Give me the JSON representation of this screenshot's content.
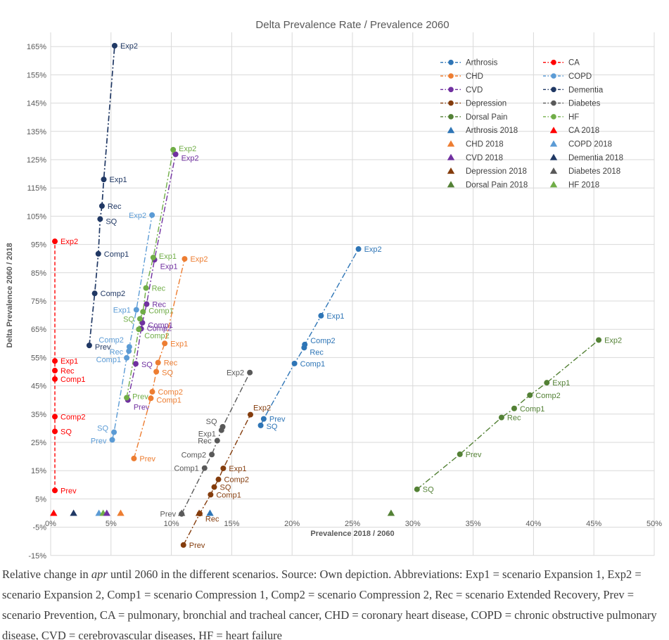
{
  "caption": {
    "before_italic": "Relative change in ",
    "italic": "apr",
    "after_italic": " until 2060 in the different scenarios. Source: Own depiction. Abbreviations: Exp1 = scenario Expansion 1, Exp2 = scenario Expansion 2, Comp1 = scenario Compression 1, Comp2 = scenario Compression 2, Rec = scenario Extended Recovery, Prev = scenario Prevention, CA = pulmonary, bronchial and tracheal cancer, CHD = coronary heart disease, COPD = chronic obstructive pulmonary disease, CVD = cerebrovascular diseases, HF = heart failure"
  },
  "legend": {
    "columns": [
      [
        "Arthrosis",
        "CHD",
        "CVD",
        "Depression",
        "Dorsal Pain",
        "Arthrosis 2018",
        "CHD 2018",
        "CVD 2018",
        "Depression 2018",
        "Dorsal Pain 2018"
      ],
      [
        "CA",
        "COPD",
        "Dementia",
        "Diabetes",
        "HF",
        "CA 2018",
        "COPD 2018",
        "Dementia 2018",
        "Diabetes 2018",
        "HF 2018"
      ]
    ]
  },
  "chart_data": {
    "type": "scatter",
    "title": "Delta Prevalence Rate / Prevalence 2060",
    "xlabel": "Prevalence 2018 / 2060",
    "ylabel": "Delta Prevalence 2060 / 2018",
    "xlim": [
      0,
      50
    ],
    "ylim": [
      -15,
      165
    ],
    "x_tick_step": 5,
    "y_tick_step": 10,
    "tick_format": "percent",
    "grid": true,
    "legend_position": "top-right-inside",
    "colors": {
      "grid": "#d9d9d9",
      "axis_text": "#595959",
      "legend_text": "#404040",
      "title_text": "#595959"
    },
    "series": [
      {
        "name": "Dementia",
        "color": "#203864",
        "style": "dashdot",
        "width": 1.7,
        "points": [
          {
            "s": "Prev",
            "x": 3.2,
            "y": 59.3,
            "side": "r",
            "dy": 6
          },
          {
            "s": "Comp2",
            "x": 3.65,
            "y": 77.7,
            "side": "r"
          },
          {
            "s": "Comp1",
            "x": 3.95,
            "y": 91.7,
            "side": "r"
          },
          {
            "s": "SQ",
            "x": 4.1,
            "y": 104.0,
            "side": "r",
            "dy": 7
          },
          {
            "s": "Rec",
            "x": 4.25,
            "y": 108.6,
            "side": "r"
          },
          {
            "s": "Exp1",
            "x": 4.4,
            "y": 118.0,
            "side": "r"
          },
          {
            "s": "Exp2",
            "x": 5.3,
            "y": 165.3,
            "side": "r"
          }
        ]
      },
      {
        "name": "CA",
        "color": "#ff0000",
        "style": "dash",
        "width": 1.4,
        "points": [
          {
            "s": "Prev",
            "x": 0.35,
            "y": 8.0,
            "side": "r"
          },
          {
            "s": "SQ",
            "x": 0.35,
            "y": 28.9,
            "side": "r"
          },
          {
            "s": "Comp2",
            "x": 0.35,
            "y": 34.1,
            "side": "r"
          },
          {
            "s": "Comp1",
            "x": 0.35,
            "y": 47.4,
            "side": "r"
          },
          {
            "s": "Rec",
            "x": 0.35,
            "y": 50.4,
            "side": "r"
          },
          {
            "s": "Exp1",
            "x": 0.35,
            "y": 53.8,
            "side": "r"
          },
          {
            "s": "Exp2",
            "x": 0.35,
            "y": 96.1,
            "side": "r"
          }
        ]
      },
      {
        "name": "COPD",
        "color": "#5b9bd5",
        "style": "dashdot",
        "width": 1.4,
        "points": [
          {
            "s": "Prev",
            "x": 5.1,
            "y": 25.9,
            "side": "l",
            "dy": 5
          },
          {
            "s": "SQ",
            "x": 5.25,
            "y": 28.6,
            "side": "l",
            "dy": -2
          },
          {
            "s": "Comp1",
            "x": 6.3,
            "y": 54.9,
            "side": "l",
            "dy": 6
          },
          {
            "s": "Rec",
            "x": 6.48,
            "y": 57.3,
            "side": "l",
            "dy": 5
          },
          {
            "s": "Comp2",
            "x": 6.52,
            "y": 58.8,
            "side": "l",
            "dy": -6
          },
          {
            "s": "Exp1",
            "x": 7.1,
            "y": 71.9,
            "side": "l"
          },
          {
            "s": "Exp2",
            "x": 8.4,
            "y": 105.4,
            "side": "l"
          }
        ]
      },
      {
        "name": "CVD",
        "color": "#7030a0",
        "style": "dashdot",
        "width": 1.4,
        "points": [
          {
            "s": "Prev",
            "x": 6.4,
            "y": 40.0,
            "side": "r",
            "dy": 14
          },
          {
            "s": "SQ",
            "x": 7.05,
            "y": 52.8,
            "side": "r",
            "dy": 5
          },
          {
            "s": "Comp2",
            "x": 7.5,
            "y": 65.2,
            "side": "r",
            "dy": 3
          },
          {
            "s": "Comp1",
            "x": 7.6,
            "y": 67.3,
            "side": "r",
            "dy": 7
          },
          {
            "s": "Rec",
            "x": 7.95,
            "y": 73.9,
            "side": "r"
          },
          {
            "s": "Exp1",
            "x": 8.6,
            "y": 89.6,
            "side": "r",
            "dy": 13
          },
          {
            "s": "Exp2",
            "x": 10.35,
            "y": 126.9,
            "side": "r",
            "dy": 9
          }
        ]
      },
      {
        "name": "HF",
        "color": "#70ad47",
        "style": "dashdot",
        "width": 1.4,
        "points": [
          {
            "s": "Prev",
            "x": 6.3,
            "y": 40.8,
            "side": "r",
            "dy": 2
          },
          {
            "s": "Comp2",
            "x": 7.3,
            "y": 65.0,
            "side": "r",
            "dy": 13
          },
          {
            "s": "SQ",
            "x": 7.4,
            "y": 68.7,
            "side": "l"
          },
          {
            "s": "Comp1",
            "x": 7.65,
            "y": 71.2,
            "side": "r",
            "dy": 2
          },
          {
            "s": "Rec",
            "x": 7.9,
            "y": 79.6,
            "side": "r"
          },
          {
            "s": "Exp1",
            "x": 8.5,
            "y": 90.4,
            "side": "r",
            "dy": 2
          },
          {
            "s": "Exp2",
            "x": 10.15,
            "y": 128.5,
            "side": "r",
            "dy": 2
          }
        ]
      },
      {
        "name": "CHD",
        "color": "#ed7d31",
        "style": "dashdot",
        "width": 1.4,
        "points": [
          {
            "s": "Prev",
            "x": 6.9,
            "y": 19.3,
            "side": "r"
          },
          {
            "s": "Comp1",
            "x": 8.3,
            "y": 40.6,
            "side": "r",
            "dy": 6
          },
          {
            "s": "Comp2",
            "x": 8.42,
            "y": 42.9,
            "side": "r"
          },
          {
            "s": "SQ",
            "x": 8.75,
            "y": 50.0,
            "side": "r",
            "dy": 5
          },
          {
            "s": "Rec",
            "x": 8.9,
            "y": 53.2,
            "side": "r"
          },
          {
            "s": "Exp1",
            "x": 9.45,
            "y": 60.0,
            "side": "r"
          },
          {
            "s": "Exp2",
            "x": 11.1,
            "y": 89.9,
            "side": "r"
          }
        ]
      },
      {
        "name": "Arthrosis",
        "color": "#2e75b6",
        "style": "dashdot",
        "width": 1.4,
        "points": [
          {
            "s": "SQ",
            "x": 17.4,
            "y": 31.0,
            "side": "r",
            "dy": 5
          },
          {
            "s": "Prev",
            "x": 17.65,
            "y": 33.3,
            "side": "r"
          },
          {
            "s": "Comp1",
            "x": 20.2,
            "y": 52.9,
            "side": "r"
          },
          {
            "s": "Rec",
            "x": 21.0,
            "y": 58.5,
            "side": "r",
            "dy": 10
          },
          {
            "s": "Comp2",
            "x": 21.05,
            "y": 59.6,
            "side": "r",
            "dy": -2
          },
          {
            "s": "Exp1",
            "x": 22.4,
            "y": 69.8,
            "side": "r"
          },
          {
            "s": "Exp2",
            "x": 25.5,
            "y": 93.4,
            "side": "r"
          }
        ]
      },
      {
        "name": "Diabetes",
        "color": "#595959",
        "style": "dashdot",
        "width": 1.4,
        "points": [
          {
            "s": "Prev",
            "x": 10.85,
            "y": -0.3,
            "side": "l"
          },
          {
            "s": "Comp1",
            "x": 12.75,
            "y": 15.9,
            "side": "l"
          },
          {
            "s": "Comp2",
            "x": 13.35,
            "y": 20.7,
            "side": "l"
          },
          {
            "s": "Rec",
            "x": 13.8,
            "y": 25.6,
            "side": "l"
          },
          {
            "s": "Exp1",
            "x": 14.15,
            "y": 29.3,
            "side": "l",
            "dy": 9
          },
          {
            "s": "SQ",
            "x": 14.25,
            "y": 30.5,
            "side": "l",
            "dy": -4
          },
          {
            "s": "Exp2",
            "x": 16.5,
            "y": 49.7,
            "side": "l"
          }
        ]
      },
      {
        "name": "Depression",
        "color": "#843c0c",
        "style": "dashdot",
        "width": 1.4,
        "points": [
          {
            "s": "Prev",
            "x": 11.0,
            "y": -11.3,
            "side": "r"
          },
          {
            "s": "Rec",
            "x": 12.35,
            "y": -0.2,
            "side": "r",
            "dy": 11
          },
          {
            "s": "Comp1",
            "x": 13.25,
            "y": 6.5,
            "side": "r"
          },
          {
            "s": "SQ",
            "x": 13.55,
            "y": 9.2,
            "side": "r"
          },
          {
            "s": "Comp2",
            "x": 13.9,
            "y": 11.9,
            "side": "r"
          },
          {
            "s": "Exp1",
            "x": 14.3,
            "y": 15.8,
            "side": "r"
          },
          {
            "s": "Exp2",
            "x": 16.55,
            "y": 34.8,
            "side": "r",
            "dx": 4,
            "dy": -6
          }
        ]
      },
      {
        "name": "Dorsal Pain",
        "color": "#538135",
        "style": "dashdot",
        "width": 1.4,
        "points": [
          {
            "s": "SQ",
            "x": 30.35,
            "y": 8.4,
            "side": "r"
          },
          {
            "s": "Prev",
            "x": 33.9,
            "y": 20.8,
            "side": "r"
          },
          {
            "s": "Rec",
            "x": 37.35,
            "y": 33.8,
            "side": "r"
          },
          {
            "s": "Comp1",
            "x": 38.4,
            "y": 37.0,
            "side": "r"
          },
          {
            "s": "Comp2",
            "x": 39.7,
            "y": 41.7,
            "side": "r"
          },
          {
            "s": "Exp1",
            "x": 41.1,
            "y": 46.1,
            "side": "r"
          },
          {
            "s": "Exp2",
            "x": 45.4,
            "y": 61.2,
            "side": "r"
          }
        ]
      },
      {
        "name": "CA 2018",
        "color": "#ff0000",
        "marker": "triangle",
        "points": [
          {
            "x": 0.25,
            "y": 0
          }
        ]
      },
      {
        "name": "Dementia 2018",
        "color": "#203864",
        "marker": "triangle",
        "points": [
          {
            "x": 1.9,
            "y": 0
          }
        ]
      },
      {
        "name": "COPD 2018",
        "color": "#5b9bd5",
        "marker": "triangle",
        "points": [
          {
            "x": 4.0,
            "y": 0
          }
        ]
      },
      {
        "name": "HF 2018",
        "color": "#70ad47",
        "marker": "triangle",
        "points": [
          {
            "x": 4.35,
            "y": 0
          }
        ]
      },
      {
        "name": "CVD 2018",
        "color": "#7030a0",
        "marker": "triangle",
        "points": [
          {
            "x": 4.65,
            "y": 0
          }
        ]
      },
      {
        "name": "CHD 2018",
        "color": "#ed7d31",
        "marker": "triangle",
        "points": [
          {
            "x": 5.8,
            "y": 0
          }
        ]
      },
      {
        "name": "Diabetes 2018",
        "color": "#595959",
        "marker": "triangle",
        "points": [
          {
            "x": 10.85,
            "y": 0
          }
        ]
      },
      {
        "name": "Depression 2018",
        "color": "#843c0c",
        "marker": "triangle",
        "points": [
          {
            "x": 12.3,
            "y": 0
          }
        ]
      },
      {
        "name": "Arthrosis 2018",
        "color": "#2e75b6",
        "marker": "triangle",
        "points": [
          {
            "x": 13.2,
            "y": 0
          }
        ]
      },
      {
        "name": "Dorsal Pain 2018",
        "color": "#538135",
        "marker": "triangle",
        "points": [
          {
            "x": 28.2,
            "y": 0
          }
        ]
      }
    ]
  }
}
